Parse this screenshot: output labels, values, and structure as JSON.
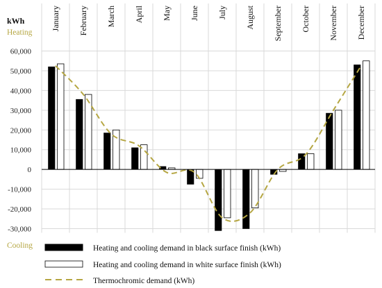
{
  "chart_data": {
    "type": "bar",
    "unit_label": "kWh",
    "annotations": {
      "top": "Heating",
      "bottom": "Cooling"
    },
    "categories": [
      "January",
      "February",
      "March",
      "April",
      "May",
      "June",
      "July",
      "August",
      "September",
      "October",
      "November",
      "December"
    ],
    "series": [
      {
        "name": "Heating and cooling demand in black surface finish  (kWh)",
        "kind": "bar",
        "color": "#000000",
        "values": [
          52000,
          35500,
          18500,
          11000,
          1500,
          -7500,
          -31000,
          -30000,
          -2500,
          8000,
          28500,
          53000
        ]
      },
      {
        "name": "Heating and cooling demand in white surface finish  (kWh)",
        "kind": "bar",
        "color": "#ffffff",
        "values": [
          53500,
          38000,
          20000,
          12500,
          800,
          -4500,
          -24500,
          -19500,
          -1000,
          8000,
          30000,
          55000
        ]
      },
      {
        "name": "Thermochromic demand (kWh)",
        "kind": "line",
        "style": "dashed",
        "color": "#b5a642",
        "values": [
          52500,
          38000,
          18000,
          12000,
          -1500,
          -1500,
          -24500,
          -22000,
          0,
          7500,
          30000,
          52500
        ]
      }
    ],
    "ylim": [
      -30000,
      60000
    ],
    "yticks": [
      -30000,
      -20000,
      -10000,
      0,
      10000,
      20000,
      30000,
      40000,
      50000,
      60000
    ],
    "ytick_labels": [
      "-30,000",
      "-20,000",
      "-10,000",
      "0",
      "10,000",
      "20,000",
      "30,000",
      "40,000",
      "50,000",
      "60,000"
    ],
    "grid": true,
    "legend_position": "bottom",
    "colors": {
      "accent": "#b5a642",
      "grid": "#d9d9d9",
      "axis": "#000000"
    }
  }
}
